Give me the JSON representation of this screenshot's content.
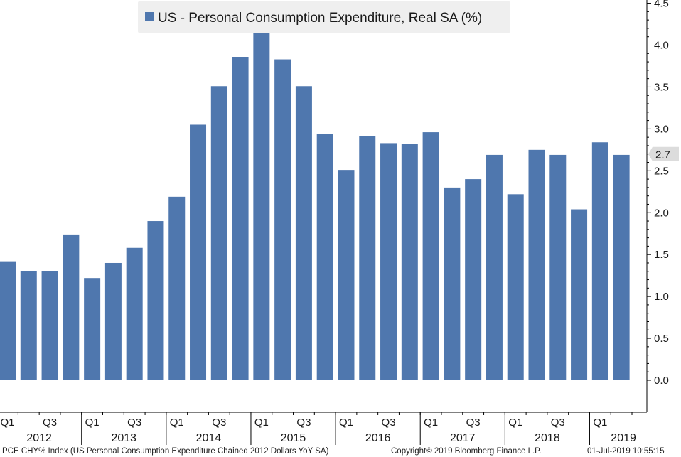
{
  "chart_data": {
    "type": "bar",
    "legend": {
      "label": "US - Personal Consumption Expenditure, Real SA (%)",
      "placement": "top-center"
    },
    "colors": {
      "bar": "#4f77ae",
      "axis": "#000000",
      "legend_bg": "#efefef",
      "callout_bg": "#dcdcdc"
    },
    "y_axis": {
      "position": "right",
      "min": -0.4,
      "max": 4.5,
      "ticks": [
        "0.0",
        "0.5",
        "1.0",
        "1.5",
        "2.0",
        "2.5",
        "3.0",
        "3.5",
        "4.0",
        "4.5"
      ],
      "tick_values": [
        0,
        0.5,
        1,
        1.5,
        2,
        2.5,
        3,
        3.5,
        4,
        4.5
      ]
    },
    "last_value_callout": {
      "label": "2.7",
      "value": 2.7
    },
    "categories": [
      "2012 Q1",
      "2012 Q2",
      "2012 Q3",
      "2012 Q4",
      "2013 Q1",
      "2013 Q2",
      "2013 Q3",
      "2013 Q4",
      "2014 Q1",
      "2014 Q2",
      "2014 Q3",
      "2014 Q4",
      "2015 Q1",
      "2015 Q2",
      "2015 Q3",
      "2015 Q4",
      "2016 Q1",
      "2016 Q2",
      "2016 Q3",
      "2016 Q4",
      "2017 Q1",
      "2017 Q2",
      "2017 Q3",
      "2017 Q4",
      "2018 Q1",
      "2018 Q2",
      "2018 Q3",
      "2018 Q4",
      "2019 Q1",
      "2019 Q2"
    ],
    "values": [
      1.42,
      1.3,
      1.3,
      1.74,
      1.22,
      1.4,
      1.58,
      1.9,
      2.19,
      3.05,
      3.51,
      3.86,
      4.16,
      3.83,
      3.51,
      2.94,
      2.51,
      2.91,
      2.83,
      2.82,
      2.96,
      2.3,
      2.4,
      2.69,
      2.22,
      2.75,
      2.69,
      2.04,
      2.84,
      2.69
    ],
    "x_axis": {
      "quarter_labels": [
        {
          "index": 0,
          "text": "Q1"
        },
        {
          "index": 2,
          "text": "Q3"
        },
        {
          "index": 4,
          "text": "Q1"
        },
        {
          "index": 6,
          "text": "Q3"
        },
        {
          "index": 8,
          "text": "Q1"
        },
        {
          "index": 10,
          "text": "Q3"
        },
        {
          "index": 12,
          "text": "Q1"
        },
        {
          "index": 14,
          "text": "Q3"
        },
        {
          "index": 16,
          "text": "Q1"
        },
        {
          "index": 18,
          "text": "Q3"
        },
        {
          "index": 20,
          "text": "Q1"
        },
        {
          "index": 22,
          "text": "Q3"
        },
        {
          "index": 24,
          "text": "Q1"
        },
        {
          "index": 26,
          "text": "Q3"
        },
        {
          "index": 28,
          "text": "Q1"
        }
      ],
      "years": [
        {
          "text": "2012",
          "start": 0,
          "count": 4
        },
        {
          "text": "2013",
          "start": 4,
          "count": 4
        },
        {
          "text": "2014",
          "start": 8,
          "count": 4
        },
        {
          "text": "2015",
          "start": 12,
          "count": 4
        },
        {
          "text": "2016",
          "start": 16,
          "count": 4
        },
        {
          "text": "2017",
          "start": 20,
          "count": 4
        },
        {
          "text": "2018",
          "start": 24,
          "count": 4
        },
        {
          "text": "2019",
          "start": 28,
          "count": 2
        }
      ]
    }
  },
  "footer": {
    "source": "PCE CHY% Index (US Personal Consumption Expenditure Chained 2012 Dollars YoY SA)",
    "copyright": "Copyright© 2019 Bloomberg Finance L.P.",
    "timestamp": "01-Jul-2019 10:55:15"
  }
}
